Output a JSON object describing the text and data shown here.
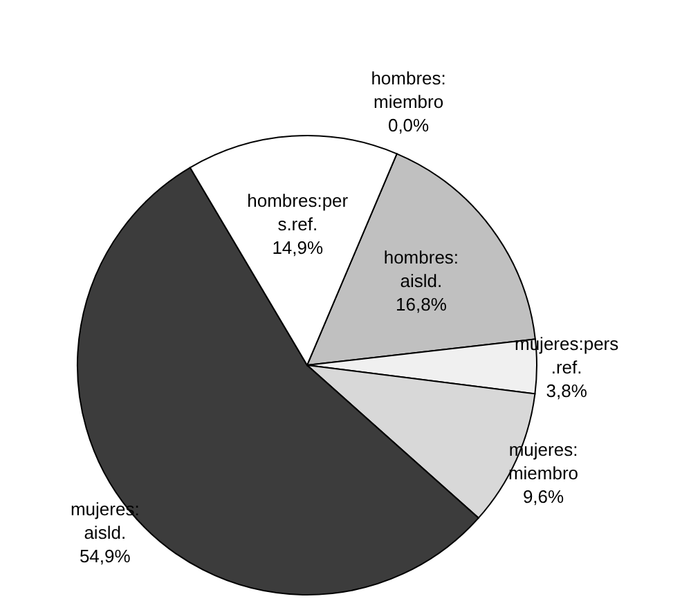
{
  "chart_data": {
    "type": "pie",
    "categories": [
      "hombres: miembro",
      "hombres: aisld.",
      "mujeres:pers.ref.",
      "mujeres: miembro",
      "mujeres: aisld.",
      "hombres:pers.ref."
    ],
    "values": [
      0.0,
      16.8,
      3.8,
      9.6,
      54.9,
      14.9
    ],
    "value_labels": [
      "0,0%",
      "16,8%",
      "3,8%",
      "9,6%",
      "54,9%",
      "14,9%"
    ],
    "colors": [
      "#ffffff",
      "#c0c0c0",
      "#f0f0f0",
      "#d8d8d8",
      "#3c3c3c",
      "#ffffff"
    ]
  }
}
